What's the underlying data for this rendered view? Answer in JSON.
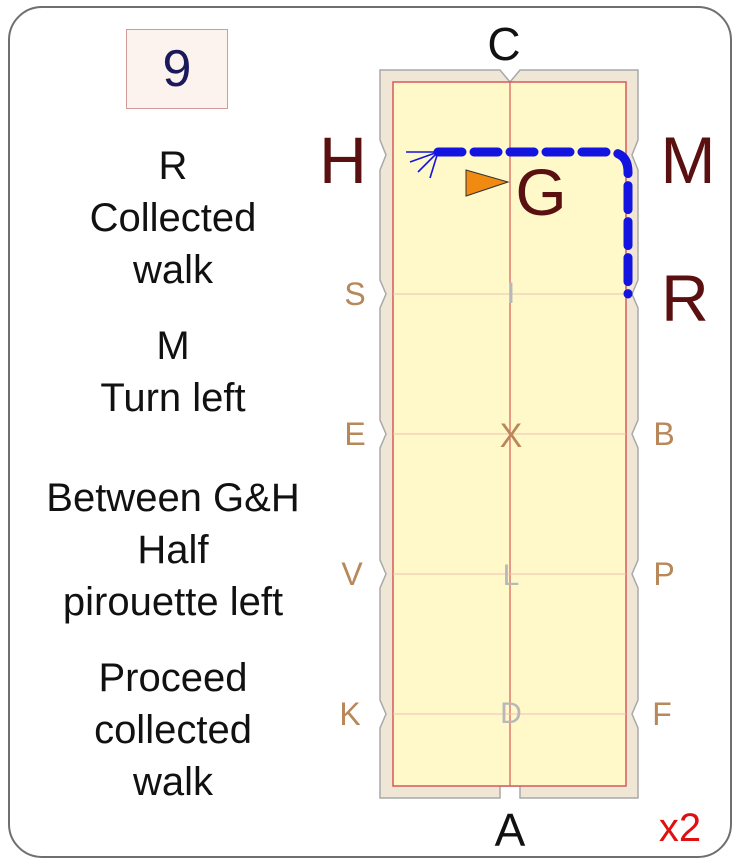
{
  "test_number": "9",
  "repeat": "x2",
  "steps": [
    {
      "lines": [
        "R",
        "Collected",
        "walk"
      ]
    },
    {
      "lines": [
        "M",
        "Turn left"
      ]
    },
    {
      "lines": [
        "Between G&H",
        "Half",
        "pirouette left"
      ]
    },
    {
      "lines": [
        "Proceed",
        "collected",
        "walk"
      ]
    }
  ],
  "markers": {
    "top": "C",
    "bottom": "A",
    "left": [
      "H",
      "S",
      "E",
      "V",
      "K"
    ],
    "right": [
      "M",
      "R",
      "B",
      "P",
      "F"
    ],
    "centerline": [
      "G",
      "I",
      "X",
      "L",
      "D"
    ]
  },
  "colors": {
    "arena_fill": "#fff9c9",
    "arena_border": "#e0d8c4",
    "arena_line": "#d65a5a",
    "path": "#1414e0",
    "direction_triangle": "#f08a10",
    "corner_letters": "#5a1010",
    "side_letters": "#b8875a",
    "center_letters": "#b8b8b8",
    "repeat_text": "#e01010"
  },
  "icons": [
    "direction-triangle-icon",
    "transition-star-icon"
  ]
}
